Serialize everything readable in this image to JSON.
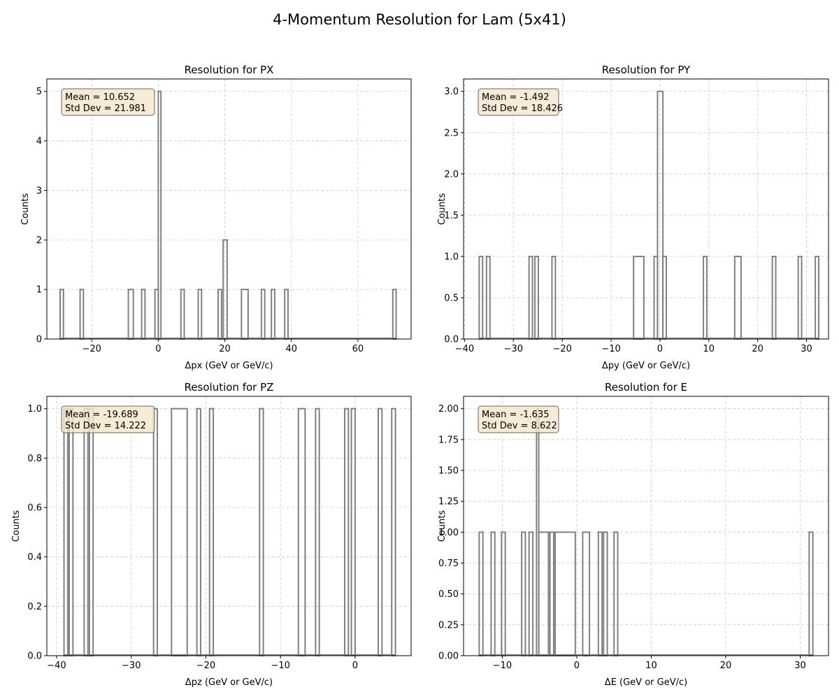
{
  "figure": {
    "title": "4-Momentum Resolution for Lam (5x41)"
  },
  "colors": {
    "histogram": "#808080",
    "grid": "#cccccc",
    "statsbox_fill": "#f5e6cb",
    "statsbox_edge": "#666666"
  },
  "chart_data": [
    {
      "type": "histogram",
      "title": "Resolution for PX",
      "xlabel": "Δpx (GeV or GeV/c)",
      "ylabel": "Counts",
      "xlim": [
        -33.5,
        76
      ],
      "ylim": [
        0,
        5.25
      ],
      "xticks": [
        -20,
        0,
        20,
        40,
        60
      ],
      "yticks": [
        0,
        1,
        2,
        3,
        4,
        5
      ],
      "grid": true,
      "stats": {
        "mean": "Mean = 10.652",
        "std": "Std Dev = 21.981"
      },
      "bins": [
        {
          "x0": -29.5,
          "x1": -28.5,
          "count": 1
        },
        {
          "x0": -23.5,
          "x1": -22.5,
          "count": 1
        },
        {
          "x0": -9.0,
          "x1": -7.5,
          "count": 1
        },
        {
          "x0": -5.0,
          "x1": -4.0,
          "count": 1
        },
        {
          "x0": -1.0,
          "x1": 0.0,
          "count": 1
        },
        {
          "x0": 0.0,
          "x1": 0.8,
          "count": 5
        },
        {
          "x0": 6.8,
          "x1": 7.8,
          "count": 1
        },
        {
          "x0": 12.0,
          "x1": 13.0,
          "count": 1
        },
        {
          "x0": 18.0,
          "x1": 19.0,
          "count": 1
        },
        {
          "x0": 19.5,
          "x1": 20.7,
          "count": 2
        },
        {
          "x0": 25.0,
          "x1": 27.0,
          "count": 1
        },
        {
          "x0": 31.0,
          "x1": 32.0,
          "count": 1
        },
        {
          "x0": 34.0,
          "x1": 35.0,
          "count": 1
        },
        {
          "x0": 38.0,
          "x1": 39.0,
          "count": 1
        },
        {
          "x0": 70.5,
          "x1": 71.5,
          "count": 1
        }
      ]
    },
    {
      "type": "histogram",
      "title": "Resolution for PY",
      "xlabel": "Δpy (GeV or GeV/c)",
      "ylabel": "Counts",
      "xlim": [
        -40.2,
        34.5
      ],
      "ylim": [
        0,
        3.15
      ],
      "xticks": [
        -40,
        -30,
        -20,
        -10,
        0,
        10,
        20,
        30
      ],
      "yticks": [
        0.0,
        0.5,
        1.0,
        1.5,
        2.0,
        2.5,
        3.0
      ],
      "grid": true,
      "stats": {
        "mean": "Mean = -1.492",
        "std": "Std Dev = 18.426"
      },
      "bins": [
        {
          "x0": -37.0,
          "x1": -36.3,
          "count": 1
        },
        {
          "x0": -35.5,
          "x1": -34.8,
          "count": 1
        },
        {
          "x0": -26.8,
          "x1": -26.1,
          "count": 1
        },
        {
          "x0": -25.6,
          "x1": -24.9,
          "count": 1
        },
        {
          "x0": -22.1,
          "x1": -21.4,
          "count": 1
        },
        {
          "x0": -5.4,
          "x1": -3.3,
          "count": 1
        },
        {
          "x0": -1.2,
          "x1": -0.5,
          "count": 1
        },
        {
          "x0": -0.5,
          "x1": 0.6,
          "count": 3
        },
        {
          "x0": 0.6,
          "x1": 1.3,
          "count": 1
        },
        {
          "x0": 8.9,
          "x1": 9.6,
          "count": 1
        },
        {
          "x0": 15.3,
          "x1": 16.6,
          "count": 1
        },
        {
          "x0": 23.0,
          "x1": 23.7,
          "count": 1
        },
        {
          "x0": 28.3,
          "x1": 29.0,
          "count": 1
        },
        {
          "x0": 31.8,
          "x1": 32.5,
          "count": 1
        }
      ]
    },
    {
      "type": "histogram",
      "title": "Resolution for PZ",
      "xlabel": "Δpz (GeV or GeV/c)",
      "ylabel": "Counts",
      "xlim": [
        -41.3,
        7.5
      ],
      "ylim": [
        0,
        1.05
      ],
      "xticks": [
        -40,
        -30,
        -20,
        -10,
        0
      ],
      "yticks": [
        0.0,
        0.2,
        0.4,
        0.6,
        0.8,
        1.0
      ],
      "grid": true,
      "stats": {
        "mean": "Mean = -19.689",
        "std": "Std Dev = 14.222"
      },
      "bins": [
        {
          "x0": -39.0,
          "x1": -38.5,
          "count": 1
        },
        {
          "x0": -38.3,
          "x1": -37.8,
          "count": 1
        },
        {
          "x0": -36.3,
          "x1": -35.8,
          "count": 1
        },
        {
          "x0": -35.6,
          "x1": -35.1,
          "count": 1
        },
        {
          "x0": -27.0,
          "x1": -26.5,
          "count": 1
        },
        {
          "x0": -24.6,
          "x1": -22.5,
          "count": 1
        },
        {
          "x0": -21.2,
          "x1": -20.7,
          "count": 1
        },
        {
          "x0": -19.5,
          "x1": -19.0,
          "count": 1
        },
        {
          "x0": -12.8,
          "x1": -12.3,
          "count": 1
        },
        {
          "x0": -7.6,
          "x1": -6.7,
          "count": 1
        },
        {
          "x0": -5.3,
          "x1": -4.8,
          "count": 1
        },
        {
          "x0": -1.4,
          "x1": -0.9,
          "count": 1
        },
        {
          "x0": -0.5,
          "x1": 0.0,
          "count": 1
        },
        {
          "x0": 3.1,
          "x1": 3.6,
          "count": 1
        },
        {
          "x0": 4.9,
          "x1": 5.4,
          "count": 1
        }
      ]
    },
    {
      "type": "histogram",
      "title": "Resolution for E",
      "xlabel": "ΔE (GeV or GeV/c)",
      "ylabel": "Counts",
      "xlim": [
        -15.2,
        33.8
      ],
      "ylim": [
        0,
        2.1
      ],
      "xticks": [
        -10,
        0,
        10,
        20,
        30
      ],
      "yticks": [
        0.0,
        0.25,
        0.5,
        0.75,
        1.0,
        1.25,
        1.5,
        1.75,
        2.0
      ],
      "grid": true,
      "stats": {
        "mean": "Mean = -1.635",
        "std": "Std Dev = 8.622"
      },
      "bins": [
        {
          "x0": -13.1,
          "x1": -12.6,
          "count": 1
        },
        {
          "x0": -11.5,
          "x1": -11.0,
          "count": 1
        },
        {
          "x0": -10.1,
          "x1": -9.6,
          "count": 1
        },
        {
          "x0": -7.4,
          "x1": -6.9,
          "count": 1
        },
        {
          "x0": -6.4,
          "x1": -5.9,
          "count": 1
        },
        {
          "x0": -5.4,
          "x1": -5.1,
          "count": 2
        },
        {
          "x0": -5.1,
          "x1": -3.8,
          "count": 1
        },
        {
          "x0": -3.6,
          "x1": -3.1,
          "count": 1
        },
        {
          "x0": -2.9,
          "x1": -0.2,
          "count": 1
        },
        {
          "x0": 0.8,
          "x1": 1.7,
          "count": 1
        },
        {
          "x0": 2.9,
          "x1": 3.4,
          "count": 1
        },
        {
          "x0": 3.6,
          "x1": 4.1,
          "count": 1
        },
        {
          "x0": 5.0,
          "x1": 5.5,
          "count": 1
        },
        {
          "x0": 31.2,
          "x1": 31.7,
          "count": 1
        }
      ]
    }
  ]
}
